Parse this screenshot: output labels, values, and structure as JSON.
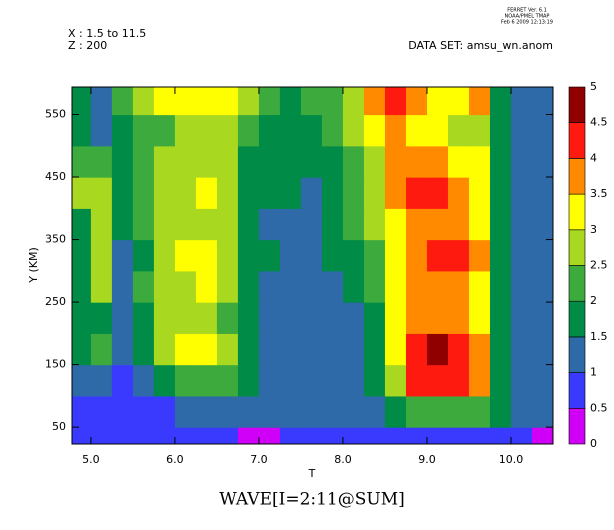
{
  "chart_data": {
    "type": "contour",
    "title": "WAVE[I=2:11@SUM]",
    "header_lines": [
      "X : 1.5 to 11.5",
      "Z : 200"
    ],
    "dataset": "DATA SET: amsu_wn.anom",
    "stamp": [
      "FERRET Ver. 6.1",
      "NOAA/PMEL TMAP",
      "Feb 6 2009 12:13:19"
    ],
    "x_label": "T",
    "y_label": "Y (KM)",
    "x": [
      4.875,
      5.125,
      5.375,
      5.625,
      5.875,
      6.125,
      6.375,
      6.625,
      6.875,
      7.125,
      7.375,
      7.625,
      7.875,
      8.125,
      8.375,
      8.625,
      8.875,
      9.125,
      9.375,
      9.625,
      9.875,
      10.125,
      10.375
    ],
    "y": [
      25,
      75,
      125,
      175,
      225,
      275,
      325,
      375,
      425,
      475,
      525,
      575
    ],
    "z": [
      [
        0.7,
        0.7,
        0.6,
        0.6,
        0.7,
        0.7,
        0.6,
        0.5,
        0.4,
        0.4,
        0.5,
        0.6,
        0.7,
        0.7,
        0.6,
        0.7,
        0.8,
        0.8,
        0.8,
        0.7,
        0.7,
        0.6,
        0.4
      ],
      [
        0.8,
        0.8,
        0.7,
        0.8,
        0.9,
        1.1,
        1.2,
        1.2,
        1.1,
        1.1,
        1.2,
        1.2,
        1.2,
        1.2,
        1.4,
        1.8,
        2.2,
        2.4,
        2.3,
        2.2,
        1.7,
        1.2,
        1.1
      ],
      [
        1.3,
        1.2,
        0.9,
        1.2,
        1.6,
        2.2,
        2.4,
        2.2,
        1.6,
        1.3,
        1.3,
        1.3,
        1.3,
        1.3,
        1.6,
        2.8,
        4.1,
        4.3,
        4.1,
        3.6,
        1.8,
        1.3,
        1.3
      ],
      [
        1.8,
        2.1,
        1.3,
        1.8,
        2.6,
        3.1,
        3.2,
        2.8,
        1.7,
        1.3,
        1.3,
        1.3,
        1.3,
        1.3,
        1.7,
        3.3,
        4.3,
        4.6,
        4.4,
        3.7,
        1.9,
        1.3,
        1.3
      ],
      [
        1.8,
        1.9,
        1.2,
        1.8,
        2.5,
        2.6,
        2.7,
        2.4,
        1.6,
        1.3,
        1.3,
        1.3,
        1.2,
        1.3,
        1.8,
        3.3,
        3.8,
        3.9,
        3.8,
        3.4,
        1.8,
        1.3,
        1.3
      ],
      [
        1.8,
        2.7,
        1.3,
        2.0,
        2.6,
        2.8,
        3.1,
        2.6,
        1.7,
        1.3,
        1.2,
        1.2,
        1.3,
        1.6,
        2.0,
        3.2,
        3.7,
        3.8,
        3.7,
        3.3,
        1.8,
        1.3,
        1.3
      ],
      [
        1.8,
        2.7,
        1.4,
        1.9,
        2.6,
        3.0,
        3.1,
        2.6,
        1.8,
        1.5,
        1.3,
        1.4,
        1.6,
        1.8,
        2.3,
        3.3,
        3.8,
        4.1,
        4.0,
        3.5,
        1.8,
        1.3,
        1.4
      ],
      [
        1.9,
        2.6,
        1.6,
        2.1,
        2.6,
        2.8,
        2.9,
        2.5,
        1.8,
        1.4,
        1.3,
        1.4,
        1.7,
        2.0,
        2.5,
        3.2,
        3.8,
        3.9,
        3.7,
        3.2,
        1.8,
        1.3,
        1.3
      ],
      [
        2.9,
        2.5,
        1.7,
        2.1,
        2.6,
        2.9,
        3.1,
        2.6,
        1.9,
        1.7,
        1.5,
        1.4,
        1.7,
        2.1,
        2.6,
        3.7,
        4.2,
        4.1,
        3.7,
        3.2,
        1.8,
        1.3,
        1.3
      ],
      [
        2.0,
        2.1,
        1.6,
        2.1,
        2.5,
        2.6,
        2.7,
        2.5,
        1.9,
        1.8,
        1.7,
        1.7,
        1.8,
        2.2,
        2.6,
        3.7,
        3.8,
        3.6,
        3.3,
        3.1,
        1.8,
        1.3,
        1.3
      ],
      [
        1.9,
        1.4,
        1.5,
        2.2,
        2.4,
        2.6,
        2.7,
        2.7,
        2.1,
        1.8,
        1.8,
        1.9,
        2.2,
        2.7,
        3.3,
        3.7,
        3.4,
        3.1,
        2.8,
        2.7,
        1.8,
        1.3,
        1.3
      ],
      [
        1.9,
        1.4,
        2.0,
        2.7,
        3.1,
        3.2,
        3.2,
        3.0,
        2.7,
        2.2,
        1.9,
        2.0,
        2.3,
        2.8,
        3.8,
        4.2,
        3.8,
        3.4,
        3.2,
        3.6,
        1.8,
        1.3,
        1.2
      ]
    ],
    "levels": [
      0,
      0.5,
      1,
      1.5,
      2,
      2.5,
      3,
      3.5,
      4,
      4.5,
      5
    ],
    "colors": [
      "#d000f8",
      "#3a3aff",
      "#2e6aa8",
      "#008c46",
      "#3caa3c",
      "#a8d820",
      "#ffff00",
      "#ff8a00",
      "#ff1a10",
      "#900000"
    ],
    "xlim": [
      4.775,
      10.5
    ],
    "ylim": [
      23,
      594
    ],
    "xticks": [
      {
        "value": 5,
        "label": "5.0"
      },
      {
        "value": 6,
        "label": "6.0"
      },
      {
        "value": 7,
        "label": "7.0"
      },
      {
        "value": 8,
        "label": "8.0"
      },
      {
        "value": 9,
        "label": "9.0"
      },
      {
        "value": 10,
        "label": "10.0"
      }
    ],
    "yticks": [
      50,
      150,
      250,
      350,
      450,
      550
    ]
  }
}
